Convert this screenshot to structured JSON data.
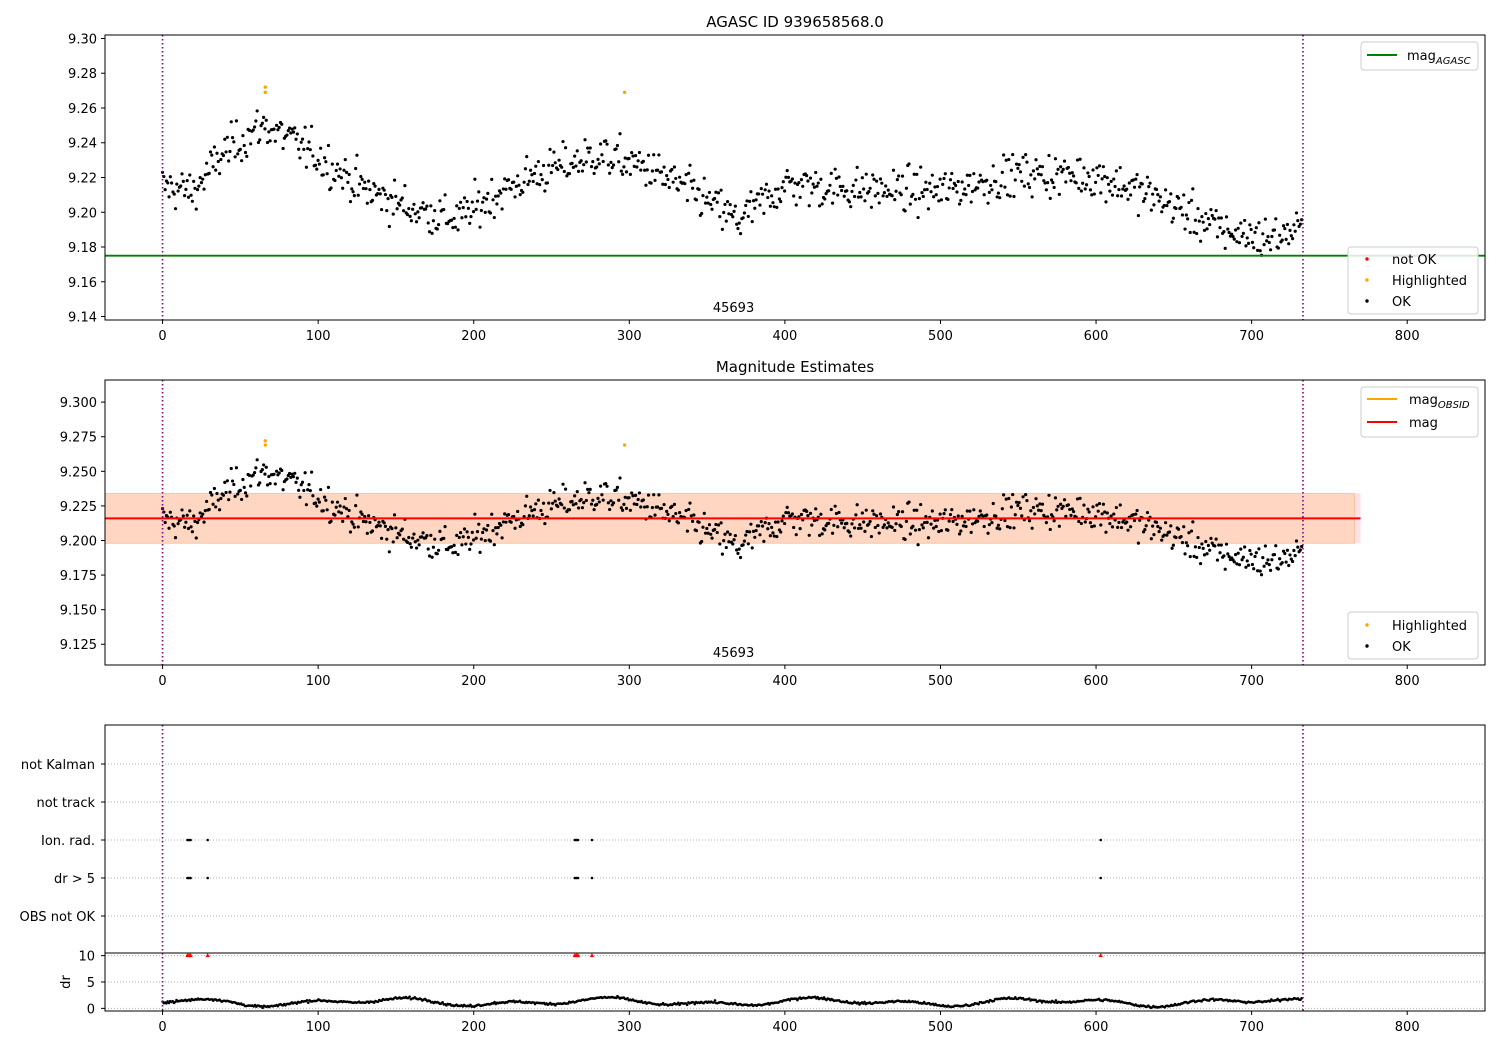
{
  "figure": {
    "panel1_title": "AGASC ID 939658568.0",
    "panel2_title": "Magnitude Estimates"
  },
  "chart_data": [
    {
      "type": "scatter",
      "title": "AGASC ID 939658568.0",
      "xlim": [
        -37,
        850
      ],
      "ylim": [
        9.138,
        9.302
      ],
      "xticks": [
        0,
        100,
        200,
        300,
        400,
        500,
        600,
        700,
        800
      ],
      "yticks": [
        9.14,
        9.16,
        9.18,
        9.2,
        9.22,
        9.24,
        9.26,
        9.28,
        9.3
      ],
      "ytick_decimals": 2,
      "obs_label": "45693",
      "obs_label_x": 367,
      "obs_boundaries": [
        0,
        733
      ],
      "agasc_mag": 9.175,
      "highlighted": [
        {
          "x": 66,
          "y": 9.272
        },
        {
          "x": 66,
          "y": 9.269
        },
        {
          "x": 297,
          "y": 9.269
        }
      ],
      "not_ok": [],
      "legend_upper": [
        {
          "label": "mag",
          "sub": "AGASC",
          "color": "#008000"
        }
      ],
      "legend_lower": [
        {
          "label": "not OK",
          "color": "#ff0000"
        },
        {
          "label": "Highlighted",
          "color": "#ffa500"
        },
        {
          "label": "OK",
          "color": "#000000"
        }
      ],
      "colors": {
        "ok": "#000000",
        "highlighted": "#ffa500",
        "agasc": "#008000",
        "boundary": "#800080"
      }
    },
    {
      "type": "scatter",
      "title": "Magnitude Estimates",
      "xlim": [
        -37,
        850
      ],
      "ylim": [
        9.11,
        9.316
      ],
      "xticks": [
        0,
        100,
        200,
        300,
        400,
        500,
        600,
        700,
        800
      ],
      "yticks": [
        9.125,
        9.15,
        9.175,
        9.2,
        9.225,
        9.25,
        9.275,
        9.3
      ],
      "ytick_decimals": 3,
      "obs_label": "45693",
      "obs_label_x": 367,
      "obs_boundaries": [
        0,
        733
      ],
      "mag": 9.216,
      "mag_band": [
        9.198,
        9.234
      ],
      "mag_band_x": [
        -37,
        770
      ],
      "obsid_band_x": [
        -37,
        770
      ],
      "highlighted": [
        {
          "x": 66,
          "y": 9.272
        },
        {
          "x": 66,
          "y": 9.269
        },
        {
          "x": 297,
          "y": 9.269
        }
      ],
      "legend_upper": [
        {
          "label": "mag",
          "sub": "OBSID",
          "color": "#ffa500"
        },
        {
          "label": "mag",
          "sub": "",
          "color": "#ff0000"
        }
      ],
      "legend_lower": [
        {
          "label": "Highlighted",
          "color": "#ffa500"
        },
        {
          "label": "OK",
          "color": "#000000"
        }
      ],
      "colors": {
        "ok": "#000000",
        "highlighted": "#ffa500",
        "mag": "#ff0000",
        "band_outer": "#ffe0e6",
        "band_inner": "#ffd6c2",
        "boundary": "#800080"
      }
    },
    {
      "type": "scatter",
      "xlim": [
        -37,
        850
      ],
      "flag_labels": [
        "not Kalman",
        "not track",
        "Ion. rad.",
        "dr > 5",
        "OBS not OK"
      ],
      "flag_points": {
        "Ion. rad.": [
          16,
          17,
          18,
          29,
          265,
          266,
          267,
          276,
          603
        ],
        "dr > 5": [
          16,
          17,
          18,
          29,
          265,
          266,
          267,
          276,
          603
        ]
      },
      "dr_ylabel": "dr",
      "dr_yticks": [
        0,
        5,
        10
      ],
      "dr_ylim": [
        -0.5,
        10.5
      ],
      "dr_high_points": [
        16,
        17,
        18,
        29,
        265,
        266,
        267,
        276,
        603
      ],
      "xticks": [
        0,
        100,
        200,
        300,
        400,
        500,
        600,
        700,
        800
      ],
      "obs_boundaries": [
        0,
        733
      ],
      "colors": {
        "dr": "#000000",
        "dr_high": "#ff0000",
        "boundary": "#800080"
      }
    }
  ]
}
